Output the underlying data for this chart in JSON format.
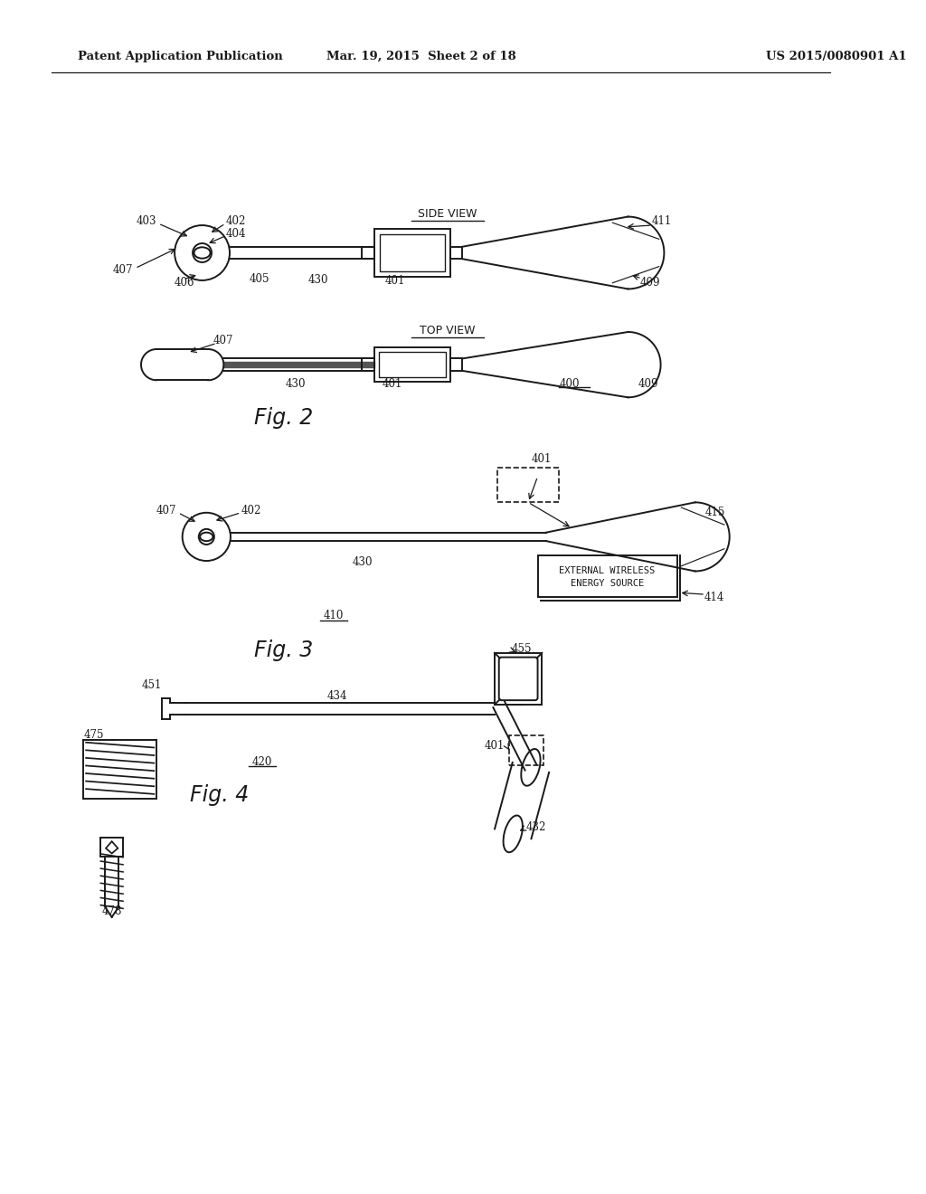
{
  "header_left": "Patent Application Publication",
  "header_mid": "Mar. 19, 2015  Sheet 2 of 18",
  "header_right": "US 2015/0080901 A1",
  "fig2_label": "Fig. 2",
  "fig3_label": "Fig. 3",
  "fig4_label": "Fig. 4",
  "fig2_side_view": "SIDE VIEW",
  "fig2_top_view": "TOP VIEW",
  "background": "#ffffff",
  "line_color": "#1a1a1a"
}
